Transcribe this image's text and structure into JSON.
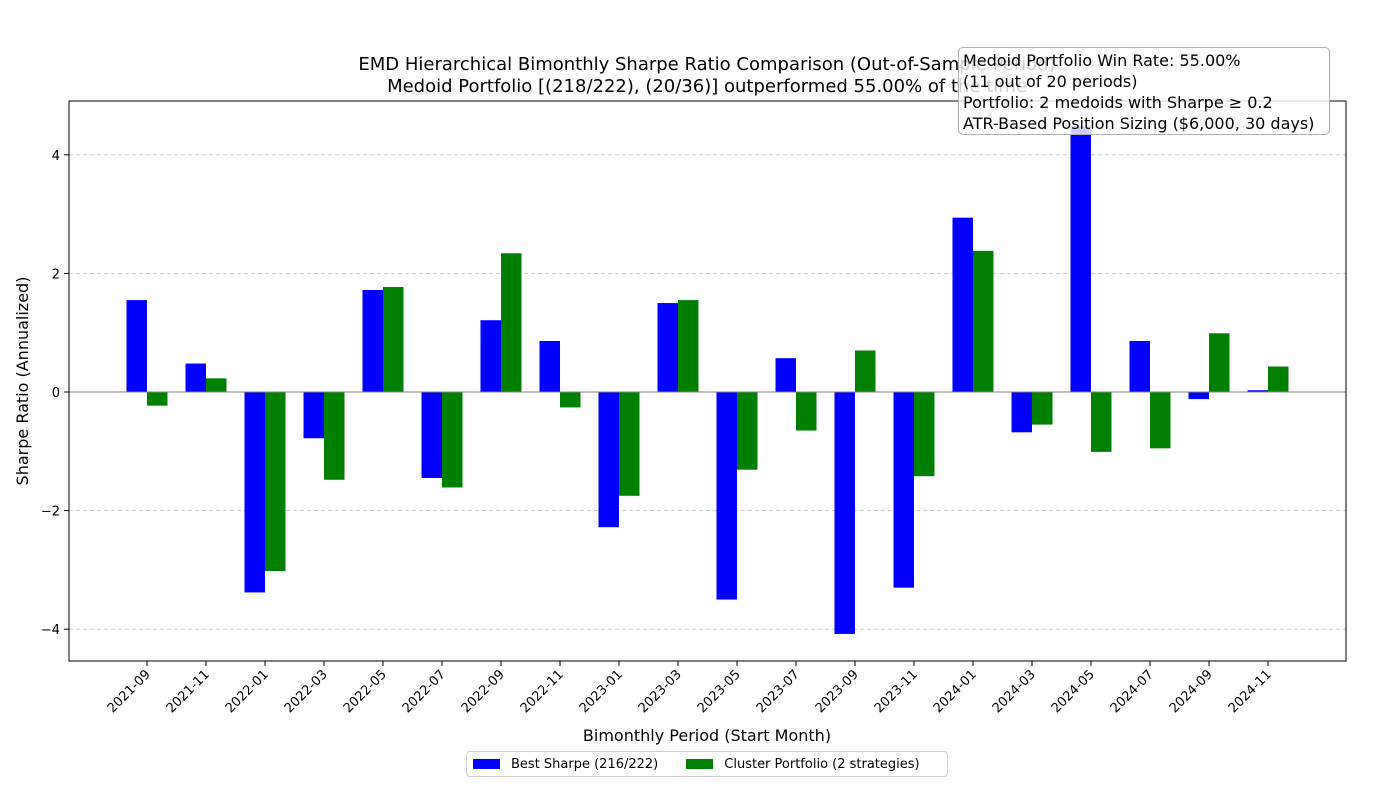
{
  "chart_data": {
    "type": "bar",
    "title": "EMD Hierarchical Bimonthly Sharpe Ratio Comparison (Out-of-Sample Period)",
    "subtitle": "Medoid Portfolio [(218/222), (20/36)] outperformed 55.00% of the time",
    "xlabel": "Bimonthly Period (Start Month)",
    "ylabel": "Sharpe Ratio (Annualized)",
    "ylim": [
      -4.5,
      4.9
    ],
    "yticks": [
      -4,
      -2,
      0,
      2,
      4
    ],
    "ytick_labels": [
      "−4",
      "−2",
      "0",
      "2",
      "4"
    ],
    "grid": "y-dashed",
    "legend_position": "bottom-center",
    "categories": [
      "2021-09",
      "2021-11",
      "2022-01",
      "2022-03",
      "2022-05",
      "2022-07",
      "2022-09",
      "2022-11",
      "2023-01",
      "2023-03",
      "2023-05",
      "2023-07",
      "2023-09",
      "2023-11",
      "2024-01",
      "2024-03",
      "2024-05",
      "2024-07",
      "2024-09",
      "2024-11"
    ],
    "series": [
      {
        "name": "Best Sharpe (216/222)",
        "color": "#0000ff",
        "values": [
          1.55,
          0.48,
          -3.38,
          -0.78,
          1.72,
          -1.45,
          1.21,
          0.86,
          -2.28,
          1.5,
          -3.5,
          0.57,
          -4.08,
          -3.3,
          2.94,
          -0.68,
          4.48,
          0.86,
          -0.12,
          0.03
        ]
      },
      {
        "name": "Cluster Portfolio (2 strategies)",
        "color": "#008000",
        "values": [
          -0.23,
          0.23,
          -3.02,
          -1.48,
          1.77,
          -1.61,
          2.34,
          -0.26,
          -1.75,
          1.55,
          -1.31,
          -0.65,
          0.7,
          -1.42,
          2.38,
          -0.55,
          -1.01,
          -0.95,
          0.99,
          0.43
        ]
      }
    ],
    "annotation": {
      "lines": [
        "Medoid Portfolio Win Rate: 55.00%",
        "(11 out of 20 periods)",
        "Portfolio: 2 medoids with Sharpe ≥ 0.2",
        "ATR-Based Position Sizing ($6,000, 30 days)"
      ],
      "position": "top-right"
    }
  }
}
